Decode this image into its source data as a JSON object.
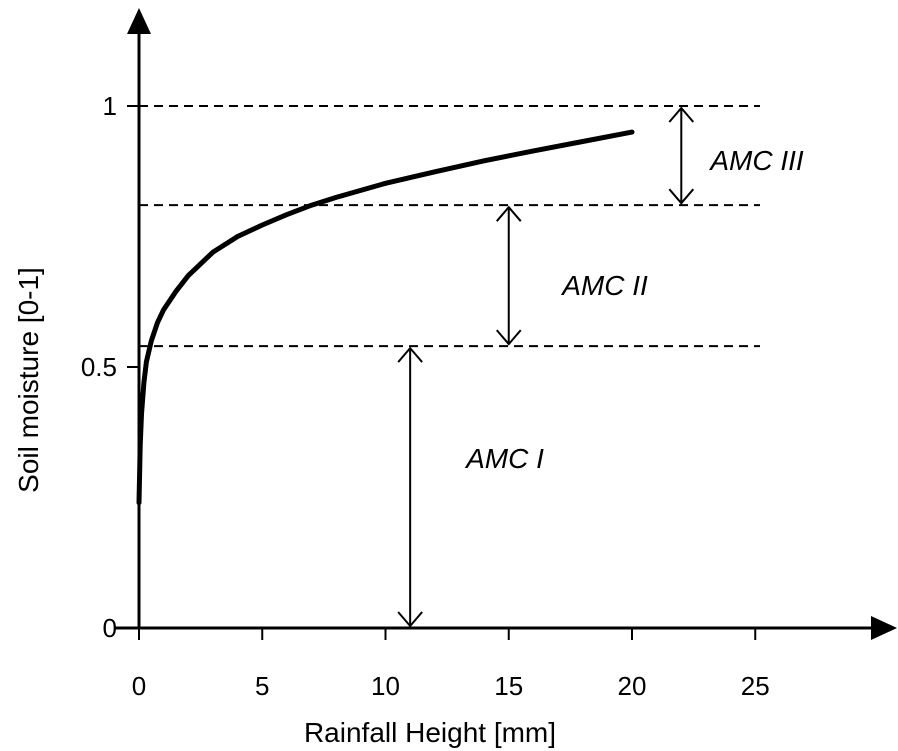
{
  "chart_data": {
    "type": "line",
    "title": "",
    "xlabel": "Rainfall Height [mm]",
    "ylabel": "Soil moisture [0-1]",
    "xlim": [
      0,
      25
    ],
    "ylim": [
      0,
      1
    ],
    "x_ticks": [
      0,
      5,
      10,
      15,
      20,
      25
    ],
    "x_tick_labels": [
      "0",
      "5",
      "10",
      "15",
      "20",
      "25"
    ],
    "y_ticks": [
      0,
      0.5,
      1
    ],
    "y_tick_labels": [
      "0",
      "0.5",
      "1"
    ],
    "grid": false,
    "legend": "none",
    "series": [
      {
        "x": [
          0,
          0.05,
          0.1,
          0.2,
          0.3,
          0.5,
          0.75,
          1,
          1.5,
          2,
          3,
          4,
          5,
          6,
          7,
          8,
          10,
          12,
          14,
          16,
          18,
          20
        ],
        "y": [
          0.24,
          0.35,
          0.41,
          0.47,
          0.51,
          0.55,
          0.585,
          0.61,
          0.645,
          0.675,
          0.72,
          0.75,
          0.772,
          0.792,
          0.81,
          0.825,
          0.852,
          0.874,
          0.895,
          0.914,
          0.932,
          0.95
        ],
        "color": "#000000"
      }
    ],
    "reference_lines": [
      {
        "axis": "y",
        "value": 1,
        "style": "dashed"
      },
      {
        "axis": "y",
        "value": 0.81,
        "style": "dashed"
      },
      {
        "axis": "y",
        "value": 0.54,
        "style": "dashed"
      }
    ],
    "ranges": [
      {
        "label": "AMC I",
        "x": 11,
        "from": 0,
        "to": 0.54
      },
      {
        "label": "AMC II",
        "x": 15,
        "from": 0.54,
        "to": 0.81
      },
      {
        "label": "AMC III",
        "x": 22,
        "from": 0.81,
        "to": 1
      }
    ],
    "annotations": [
      "AMC I",
      "AMC II",
      "AMC III"
    ]
  }
}
